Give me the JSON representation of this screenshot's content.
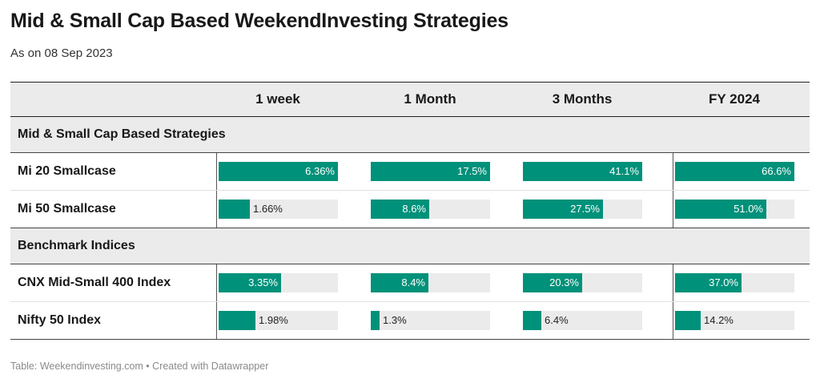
{
  "title": "Mid & Small Cap Based WeekendInvesting Strategies",
  "subtitle": "As on 08 Sep 2023",
  "footer": "Table: Weekendinvesting.com • Created with Datawrapper",
  "colors": {
    "bar": "#00917a",
    "track": "#ebebeb",
    "header_bg": "#ebebeb"
  },
  "chart_data": {
    "type": "table",
    "columns": [
      "1 week",
      "1 Month",
      "3 Months",
      "FY 2024"
    ],
    "value_unit": "%",
    "groups": [
      {
        "name": "Mid & Small Cap Based Strategies",
        "rows": [
          {
            "name": "Mi 20 Smallcase",
            "values": [
              6.36,
              17.5,
              41.1,
              66.6
            ],
            "labels": [
              "6.36%",
              "17.5%",
              "41.1%",
              "66.6%"
            ]
          },
          {
            "name": "Mi 50 Smallcase",
            "values": [
              1.66,
              8.6,
              27.5,
              51.0
            ],
            "labels": [
              "1.66%",
              "8.6%",
              "27.5%",
              "51.0%"
            ]
          }
        ]
      },
      {
        "name": "Benchmark Indices",
        "rows": [
          {
            "name": "CNX Mid-Small 400 Index",
            "values": [
              3.35,
              8.4,
              20.3,
              37.0
            ],
            "labels": [
              "3.35%",
              "8.4%",
              "20.3%",
              "37.0%"
            ]
          },
          {
            "name": "Nifty 50 Index",
            "values": [
              1.98,
              1.3,
              6.4,
              14.2
            ],
            "labels": [
              "1.98%",
              "1.3%",
              "6.4%",
              "14.2%"
            ]
          }
        ]
      }
    ]
  }
}
